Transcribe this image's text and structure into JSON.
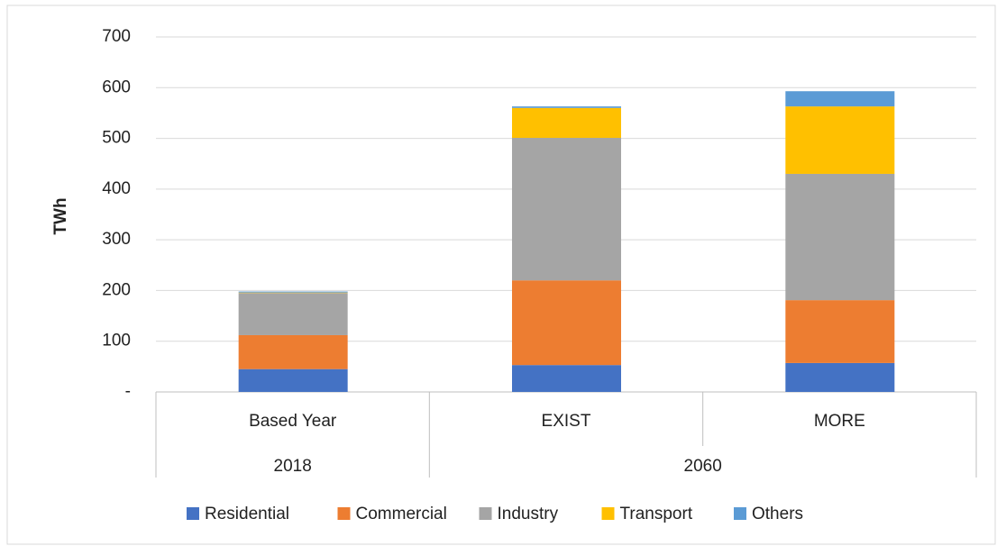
{
  "chart_data": {
    "type": "stacked_bar",
    "y_label": "TWh",
    "categories": [
      "Based Year",
      "EXIST",
      "MORE"
    ],
    "groups": [
      {
        "label": "2018",
        "size": 1
      },
      {
        "label": "2060",
        "size": 2
      }
    ],
    "series": [
      {
        "name": "Residential",
        "color": "#4472c4",
        "values": [
          45,
          53,
          57
        ]
      },
      {
        "name": "Commercial",
        "color": "#ed7d31",
        "values": [
          67,
          167,
          124
        ]
      },
      {
        "name": "Industry",
        "color": "#a5a5a5",
        "values": [
          83,
          281,
          249
        ]
      },
      {
        "name": "Transport",
        "color": "#ffc000",
        "values": [
          1,
          59,
          133
        ]
      },
      {
        "name": "Others",
        "color": "#5b9bd5",
        "values": [
          2,
          3,
          30
        ]
      }
    ],
    "ylim": [
      0,
      700
    ],
    "yticks": [
      {
        "value": 0,
        "label": "-"
      },
      100,
      200,
      300,
      400,
      500,
      600,
      700
    ],
    "grid": true,
    "legend": "bottom"
  }
}
